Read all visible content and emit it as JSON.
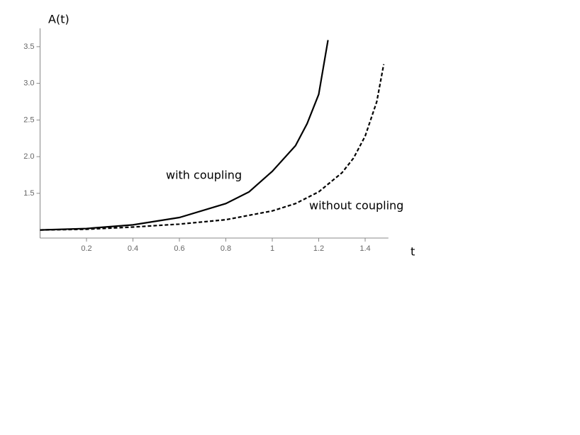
{
  "chart_data": {
    "type": "line",
    "xlabel": "t",
    "ylabel": "A(t)",
    "xlim": [
      0,
      1.5
    ],
    "ylim": [
      0.89,
      3.75
    ],
    "xticks": [
      0.2,
      0.4,
      0.6,
      0.8,
      1.0,
      1.2,
      1.4
    ],
    "yticks": [
      1.5,
      {
        "value": 2,
        "label": "2.0"
      },
      2.5,
      {
        "value": 3,
        "label": "3.0"
      },
      3.5
    ],
    "series": [
      {
        "name": "with coupling",
        "color": "#000000",
        "style": "solid",
        "x": [
          0,
          0.2,
          0.4,
          0.6,
          0.8,
          0.9,
          1.0,
          1.1,
          1.15,
          1.2,
          1.24
        ],
        "values": [
          1.0,
          1.02,
          1.07,
          1.17,
          1.36,
          1.52,
          1.8,
          2.15,
          2.45,
          2.85,
          3.59
        ]
      },
      {
        "name": "without coupling",
        "color": "#000000",
        "style": "dashed",
        "x": [
          0,
          0.2,
          0.4,
          0.6,
          0.8,
          1.0,
          1.1,
          1.2,
          1.3,
          1.35,
          1.4,
          1.45,
          1.48
        ],
        "values": [
          1.0,
          1.01,
          1.04,
          1.08,
          1.14,
          1.26,
          1.36,
          1.52,
          1.78,
          1.98,
          2.28,
          2.75,
          3.26
        ]
      }
    ]
  }
}
